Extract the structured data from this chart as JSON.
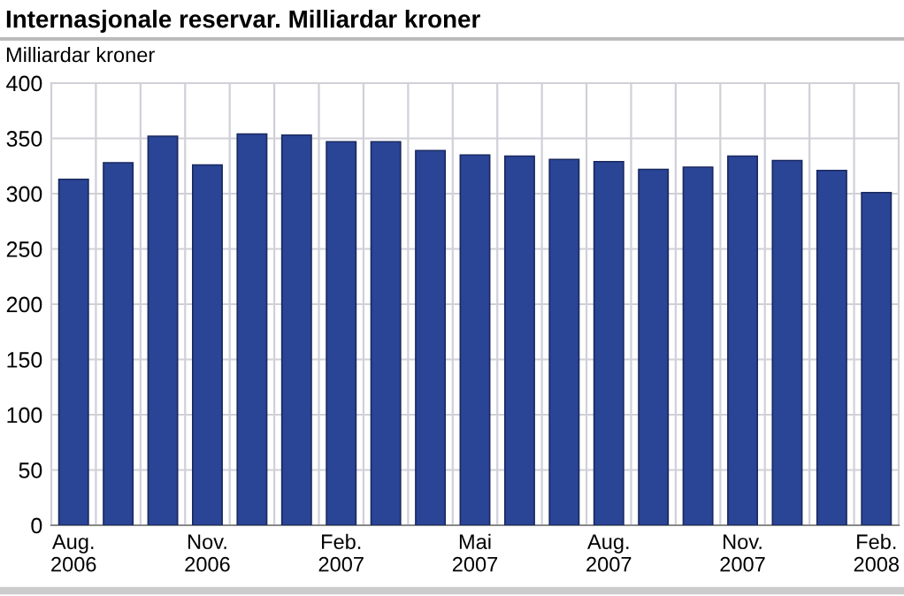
{
  "chart_data": {
    "type": "bar",
    "title": "Internasjonale reservar. Milliardar kroner",
    "ylabel": "Milliardar kroner",
    "categories": [
      "Aug.\n2006",
      null,
      null,
      "Nov.\n2006",
      null,
      null,
      "Feb.\n2007",
      null,
      null,
      "Mai\n2007",
      null,
      null,
      "Aug.\n2007",
      null,
      null,
      "Nov.\n2007",
      null,
      null,
      "Feb.\n2008"
    ],
    "values": [
      313,
      328,
      352,
      326,
      354,
      353,
      347,
      347,
      339,
      335,
      334,
      331,
      329,
      322,
      324,
      334,
      330,
      321,
      301
    ],
    "color": "#2a4496",
    "ylim": [
      0,
      400
    ],
    "yticks": [
      0,
      50,
      100,
      150,
      200,
      250,
      300,
      350,
      400
    ],
    "grid": true
  }
}
